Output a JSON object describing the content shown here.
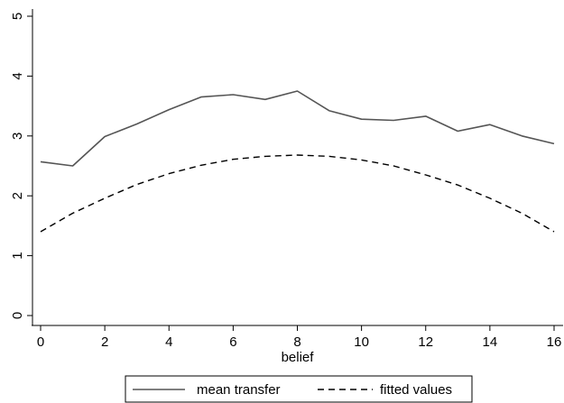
{
  "chart_data": {
    "type": "line",
    "xlabel": "belief",
    "ylabel": "",
    "xlim": [
      0,
      16
    ],
    "ylim": [
      0,
      5
    ],
    "xticks": [
      0,
      2,
      4,
      6,
      8,
      10,
      12,
      14,
      16
    ],
    "yticks": [
      0,
      1,
      2,
      3,
      4,
      5
    ],
    "grid": false,
    "legend_position": "bottom",
    "series": [
      {
        "name": "mean transfer",
        "style": "solid",
        "color": "#555555",
        "x": [
          0,
          1,
          2,
          3,
          4,
          5,
          6,
          7,
          8,
          9,
          10,
          11,
          12,
          13,
          14,
          15,
          16
        ],
        "y": [
          2.57,
          2.5,
          2.99,
          3.2,
          3.44,
          3.65,
          3.69,
          3.61,
          3.75,
          3.42,
          3.28,
          3.26,
          3.33,
          3.08,
          3.19,
          3.0,
          2.87
        ]
      },
      {
        "name": "fitted values",
        "style": "dashed",
        "color": "#000000",
        "x": [
          0,
          1,
          2,
          3,
          4,
          5,
          6,
          7,
          8,
          9,
          10,
          11,
          12,
          13,
          14,
          15,
          16
        ],
        "y": [
          1.4,
          1.71,
          1.96,
          2.19,
          2.37,
          2.51,
          2.61,
          2.66,
          2.68,
          2.66,
          2.6,
          2.5,
          2.35,
          2.18,
          1.96,
          1.71,
          1.4
        ]
      }
    ]
  }
}
